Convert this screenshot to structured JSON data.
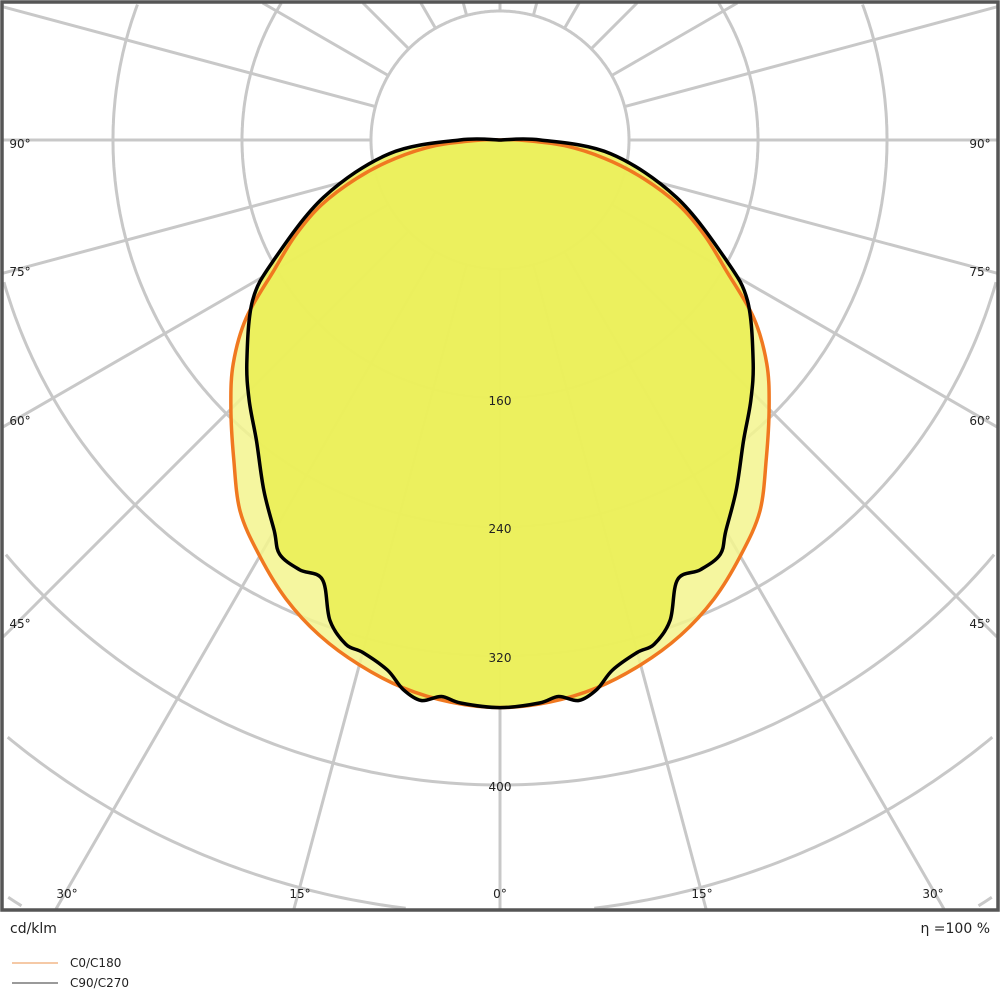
{
  "chart_data": {
    "type": "polar",
    "unit_label": "cd/klm",
    "efficiency_label": "η =100 %",
    "symmetric": true,
    "radial_ticks": [
      160,
      240,
      320,
      400
    ],
    "radial_grid_step": 80,
    "angle_ticks_sides": [
      "90°",
      "75°",
      "60°",
      "45°"
    ],
    "angle_ticks_bottom": [
      "30°",
      "15°",
      "0°",
      "15°",
      "30°"
    ],
    "angle_grid_step_deg": 15,
    "grid": true,
    "legend_placement": "bottom-left",
    "series": [
      {
        "name": "C0/C180",
        "color": "#f07820",
        "legend_color": "#f5c9a6",
        "angles": [
          0,
          5,
          10,
          15,
          20,
          25,
          30,
          35,
          40,
          45,
          50,
          55,
          60,
          65,
          70,
          75,
          80,
          85,
          90
        ],
        "values": [
          352,
          350,
          345,
          337,
          327,
          314,
          298,
          281,
          257,
          236,
          216,
          192,
          162,
          140,
          118,
          92,
          66,
          40,
          12
        ]
      },
      {
        "name": "C90/C270",
        "color": "#000000",
        "legend_color": "#9a9a9a",
        "angles": [
          0,
          4,
          6,
          8,
          10,
          12,
          15,
          17,
          19.5,
          22,
          25,
          28,
          30,
          34,
          39,
          44,
          49,
          57,
          62,
          72,
          83,
          90
        ],
        "values": [
          352,
          350,
          347,
          351,
          346,
          336,
          329,
          327,
          316,
          294,
          294,
          291,
          280,
          262,
          240,
          224,
          208,
          183,
          159,
          115,
          69,
          25
        ]
      }
    ]
  }
}
